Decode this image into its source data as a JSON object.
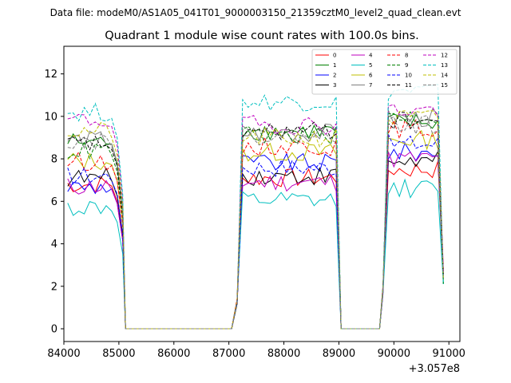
{
  "chart_data": {
    "type": "line",
    "suptitle": "Data file: modeM0/AS1A05_041T01_9000003150_21359cztM0_level2_quad_clean.evt",
    "title": "Quadrant 1 module wise count rates with 100.0s bins.",
    "xlabel": "",
    "ylabel": "",
    "x_offset_label": "+3.057e8",
    "xlim": [
      84000,
      91200
    ],
    "ylim": [
      -0.6,
      13.3
    ],
    "xticks": [
      84000,
      85000,
      86000,
      87000,
      88000,
      89000,
      90000,
      91000
    ],
    "xtick_labels": [
      "84000",
      "85000",
      "86000",
      "87000",
      "88000",
      "89000",
      "90000",
      "91000"
    ],
    "yticks": [
      0,
      2,
      4,
      6,
      8,
      10,
      12
    ],
    "ytick_labels": [
      "0",
      "2",
      "4",
      "6",
      "8",
      "10",
      "12"
    ],
    "legend_position": "top-right",
    "segments": [
      {
        "start": 84070,
        "end": 85020
      },
      {
        "start": 87150,
        "end": 88940
      },
      {
        "start": 89800,
        "end": 90870
      }
    ],
    "zero_gaps": [
      {
        "start": 85120,
        "end": 87050
      },
      {
        "start": 89040,
        "end": 89740
      }
    ],
    "series": [
      {
        "name": "0",
        "color": "#ff0000",
        "dashed": false,
        "level": [
          6.8,
          7.1,
          7.5
        ]
      },
      {
        "name": "1",
        "color": "#008000",
        "dashed": false,
        "level": [
          8.8,
          9.3,
          9.7
        ]
      },
      {
        "name": "2",
        "color": "#0000ff",
        "dashed": false,
        "level": [
          6.7,
          7.8,
          8.3
        ]
      },
      {
        "name": "3",
        "color": "#000000",
        "dashed": false,
        "level": [
          7.1,
          7.2,
          7.9
        ]
      },
      {
        "name": "4",
        "color": "#bf00bf",
        "dashed": false,
        "level": [
          6.7,
          6.9,
          8.0
        ]
      },
      {
        "name": "5",
        "color": "#00bfbf",
        "dashed": false,
        "level": [
          5.7,
          6.0,
          6.6
        ]
      },
      {
        "name": "6",
        "color": "#bfbf00",
        "dashed": false,
        "level": [
          7.9,
          8.3,
          8.9
        ]
      },
      {
        "name": "7",
        "color": "#808080",
        "dashed": false,
        "level": [
          8.9,
          9.2,
          9.9
        ]
      },
      {
        "name": "8",
        "color": "#ff0000",
        "dashed": true,
        "level": [
          7.9,
          8.6,
          9.4
        ]
      },
      {
        "name": "9",
        "color": "#008000",
        "dashed": true,
        "level": [
          8.4,
          9.1,
          10.0
        ]
      },
      {
        "name": "10",
        "color": "#0000ff",
        "dashed": true,
        "level": [
          7.2,
          7.6,
          8.7
        ]
      },
      {
        "name": "11",
        "color": "#000000",
        "dashed": true,
        "level": [
          8.7,
          9.3,
          9.8
        ]
      },
      {
        "name": "12",
        "color": "#bf00bf",
        "dashed": true,
        "level": [
          9.8,
          9.6,
          10.3
        ]
      },
      {
        "name": "13",
        "color": "#00bfbf",
        "dashed": true,
        "level": [
          10.2,
          10.7,
          11.2
        ]
      },
      {
        "name": "14",
        "color": "#bfbf00",
        "dashed": true,
        "level": [
          9.3,
          9.0,
          9.9
        ]
      },
      {
        "name": "15",
        "color": "#808080",
        "dashed": true,
        "level": [
          8.9,
          9.1,
          9.6
        ]
      }
    ]
  }
}
